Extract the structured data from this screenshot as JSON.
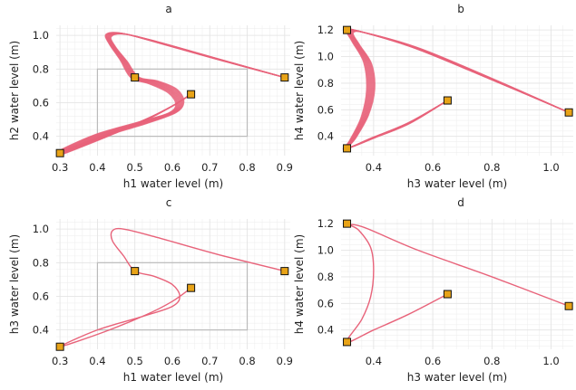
{
  "chart_data": [
    {
      "id": "a",
      "type": "line",
      "title": "a",
      "xlabel": "h1 water level (m)",
      "ylabel": "h2 water level (m)",
      "xlim": [
        0.29,
        0.915
      ],
      "ylim": [
        0.285,
        1.06
      ],
      "xticks": [
        0.3,
        0.4,
        0.5,
        0.6,
        0.7,
        0.8,
        0.9
      ],
      "xtick_labels": [
        "0.3",
        "0.4",
        "0.5",
        "0.6",
        "0.7",
        "0.8",
        "0.9"
      ],
      "yticks": [
        0.4,
        0.6,
        0.8,
        1.0
      ],
      "ytick_labels": [
        "0.4",
        "0.6",
        "0.8",
        "1.0"
      ],
      "grid": true,
      "line_color": "#e8637a",
      "marker_color": "#e8a317",
      "region_color": "#bbbbbb",
      "region": {
        "x": [
          0.4,
          0.8
        ],
        "y": [
          0.4,
          0.8
        ]
      },
      "trajectory_count": 10,
      "markers": [
        {
          "x": 0.3,
          "y": 0.3
        },
        {
          "x": 0.5,
          "y": 0.75
        },
        {
          "x": 0.65,
          "y": 0.65
        },
        {
          "x": 0.9,
          "y": 0.75
        }
      ],
      "trajectories": [
        [
          [
            0.9,
            0.75
          ],
          [
            0.72,
            0.86
          ],
          [
            0.56,
            0.96
          ],
          [
            0.47,
            1.01
          ],
          [
            0.43,
            1.0
          ],
          [
            0.44,
            0.94
          ],
          [
            0.47,
            0.85
          ],
          [
            0.5,
            0.75
          ],
          [
            0.55,
            0.72
          ],
          [
            0.6,
            0.67
          ],
          [
            0.62,
            0.6
          ],
          [
            0.6,
            0.54
          ],
          [
            0.52,
            0.48
          ],
          [
            0.4,
            0.4
          ],
          [
            0.3,
            0.3
          ],
          [
            0.42,
            0.4
          ],
          [
            0.53,
            0.5
          ],
          [
            0.6,
            0.58
          ],
          [
            0.65,
            0.65
          ]
        ]
      ]
    },
    {
      "id": "b",
      "type": "line",
      "title": "b",
      "xlabel": "h3 water level (m)",
      "ylabel": "h4 water level (m)",
      "xlim": [
        0.29,
        1.075
      ],
      "ylim": [
        0.255,
        1.235
      ],
      "xticks": [
        0.4,
        0.6,
        0.8,
        1.0
      ],
      "xtick_labels": [
        "0.4",
        "0.6",
        "0.8",
        "1.0"
      ],
      "yticks": [
        0.4,
        0.6,
        0.8,
        1.0,
        1.2
      ],
      "ytick_labels": [
        "0.4",
        "0.6",
        "0.8",
        "1.0",
        "1.2"
      ],
      "grid": true,
      "line_color": "#e8637a",
      "marker_color": "#e8a317",
      "trajectory_count": 10,
      "markers": [
        {
          "x": 0.31,
          "y": 1.2
        },
        {
          "x": 1.06,
          "y": 0.58
        },
        {
          "x": 0.31,
          "y": 0.31
        },
        {
          "x": 0.65,
          "y": 0.67
        }
      ],
      "trajectories": [
        [
          [
            1.06,
            0.58
          ],
          [
            0.8,
            0.83
          ],
          [
            0.55,
            1.06
          ],
          [
            0.37,
            1.18
          ],
          [
            0.32,
            1.19
          ],
          [
            0.34,
            1.1
          ],
          [
            0.38,
            0.95
          ],
          [
            0.39,
            0.75
          ],
          [
            0.37,
            0.55
          ],
          [
            0.33,
            0.38
          ],
          [
            0.31,
            0.31
          ],
          [
            0.4,
            0.39
          ],
          [
            0.52,
            0.5
          ],
          [
            0.65,
            0.67
          ]
        ]
      ]
    },
    {
      "id": "c",
      "type": "line",
      "title": "c",
      "xlabel": "h1 water level (m)",
      "ylabel": "h3 water level (m)",
      "xlim": [
        0.29,
        0.915
      ],
      "ylim": [
        0.285,
        1.06
      ],
      "xticks": [
        0.3,
        0.4,
        0.5,
        0.6,
        0.7,
        0.8,
        0.9
      ],
      "xtick_labels": [
        "0.3",
        "0.4",
        "0.5",
        "0.6",
        "0.7",
        "0.8",
        "0.9"
      ],
      "yticks": [
        0.4,
        0.6,
        0.8,
        1.0
      ],
      "ytick_labels": [
        "0.4",
        "0.6",
        "0.8",
        "1.0"
      ],
      "grid": true,
      "line_color": "#e8637a",
      "marker_color": "#e8a317",
      "region_color": "#bbbbbb",
      "region": {
        "x": [
          0.4,
          0.8
        ],
        "y": [
          0.4,
          0.8
        ]
      },
      "trajectory_count": 1,
      "markers": [
        {
          "x": 0.3,
          "y": 0.3
        },
        {
          "x": 0.5,
          "y": 0.75
        },
        {
          "x": 0.65,
          "y": 0.65
        },
        {
          "x": 0.9,
          "y": 0.75
        }
      ],
      "trajectories": [
        [
          [
            0.9,
            0.75
          ],
          [
            0.72,
            0.85
          ],
          [
            0.56,
            0.95
          ],
          [
            0.47,
            1.0
          ],
          [
            0.44,
            0.99
          ],
          [
            0.44,
            0.93
          ],
          [
            0.47,
            0.84
          ],
          [
            0.5,
            0.75
          ],
          [
            0.55,
            0.72
          ],
          [
            0.6,
            0.67
          ],
          [
            0.62,
            0.6
          ],
          [
            0.6,
            0.54
          ],
          [
            0.52,
            0.48
          ],
          [
            0.4,
            0.4
          ],
          [
            0.3,
            0.3
          ],
          [
            0.42,
            0.39
          ],
          [
            0.53,
            0.49
          ],
          [
            0.6,
            0.57
          ],
          [
            0.65,
            0.65
          ]
        ]
      ]
    },
    {
      "id": "d",
      "type": "line",
      "title": "d",
      "xlabel": "h3 water level (m)",
      "ylabel": "h4 water level (m)",
      "xlim": [
        0.29,
        1.075
      ],
      "ylim": [
        0.255,
        1.235
      ],
      "xticks": [
        0.4,
        0.6,
        0.8,
        1.0
      ],
      "xtick_labels": [
        "0.4",
        "0.6",
        "0.8",
        "1.0"
      ],
      "yticks": [
        0.2,
        0.4,
        0.6,
        0.8,
        1.0,
        1.2
      ],
      "ytick_labels": [
        "",
        "0.4",
        "0.6",
        "0.8",
        "1.0",
        "1.2"
      ],
      "grid": true,
      "line_color": "#e8637a",
      "marker_color": "#e8a317",
      "trajectory_count": 1,
      "markers": [
        {
          "x": 0.31,
          "y": 1.2
        },
        {
          "x": 1.06,
          "y": 0.58
        },
        {
          "x": 0.31,
          "y": 0.31
        },
        {
          "x": 0.65,
          "y": 0.67
        }
      ],
      "trajectories": [
        [
          [
            1.06,
            0.58
          ],
          [
            0.8,
            0.8
          ],
          [
            0.55,
            1.0
          ],
          [
            0.37,
            1.17
          ],
          [
            0.32,
            1.19
          ],
          [
            0.35,
            1.15
          ],
          [
            0.39,
            1.02
          ],
          [
            0.4,
            0.85
          ],
          [
            0.39,
            0.65
          ],
          [
            0.36,
            0.48
          ],
          [
            0.31,
            0.31
          ],
          [
            0.4,
            0.4
          ],
          [
            0.52,
            0.52
          ],
          [
            0.65,
            0.67
          ]
        ]
      ]
    }
  ]
}
